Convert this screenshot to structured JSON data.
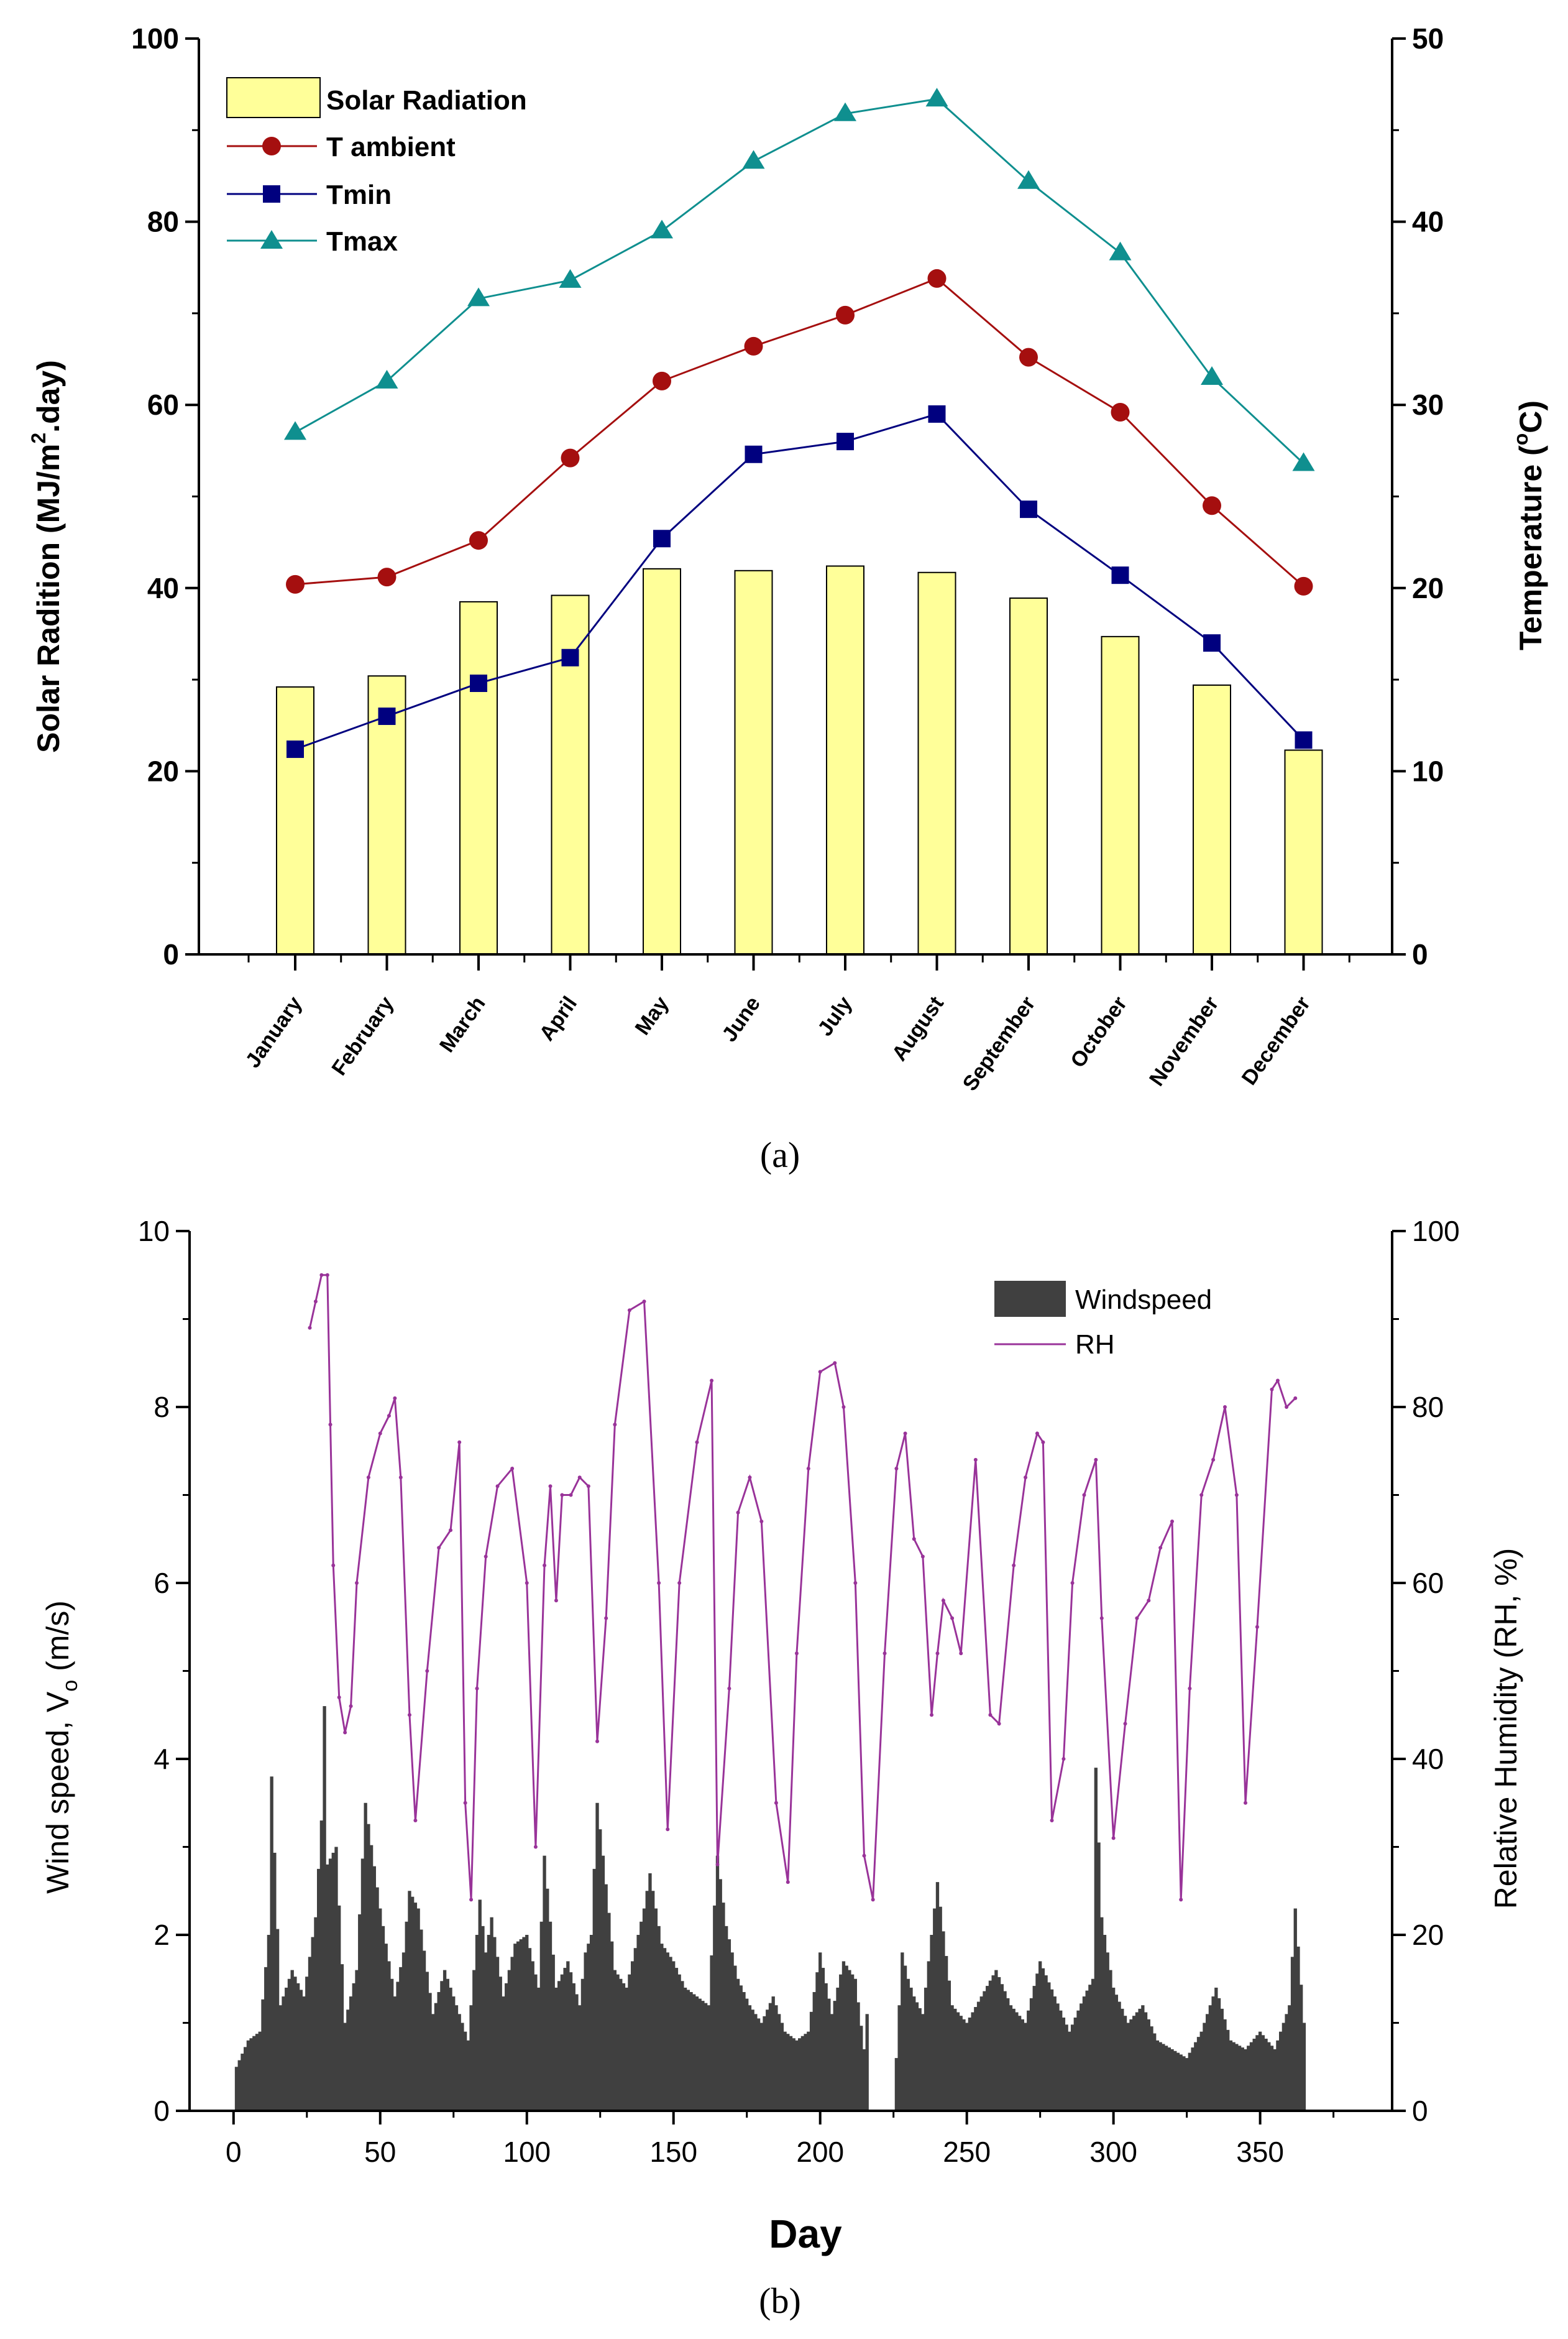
{
  "chart_data": [
    {
      "type": "bar",
      "panel_label": "(a)",
      "categories": [
        "January",
        "February",
        "March",
        "April",
        "May",
        "June",
        "July",
        "August",
        "September",
        "October",
        "November",
        "December"
      ],
      "ylabel_left": "Solar Radition (MJ/m",
      "ylabel_left_sup": "2",
      "ylabel_left_tail": ".day)",
      "ylabel_right": "Temperature (",
      "ylabel_right_sup": "o",
      "ylabel_right_tail": "C)",
      "ylim_left": [
        0,
        100
      ],
      "ylim_right": [
        0,
        50
      ],
      "yticks_left": [
        "0",
        "20",
        "40",
        "60",
        "80",
        "100"
      ],
      "yticks_right": [
        "0",
        "10",
        "20",
        "30",
        "40",
        "50"
      ],
      "legend_position": "top-left",
      "series": [
        {
          "name": "Solar Radiation",
          "type": "bar",
          "axis": "left",
          "color": "#ffff99",
          "values": [
            29.2,
            30.4,
            38.5,
            39.2,
            42.1,
            41.9,
            42.4,
            41.7,
            38.9,
            34.7,
            29.4,
            22.3
          ]
        },
        {
          "name": "T ambient",
          "type": "line",
          "marker": "circle",
          "axis": "right",
          "color": "#a50f0f",
          "values": [
            20.2,
            20.6,
            22.6,
            27.1,
            31.3,
            33.2,
            34.9,
            36.9,
            32.6,
            29.6,
            24.5,
            20.1
          ]
        },
        {
          "name": "Tmin",
          "type": "line",
          "marker": "square",
          "axis": "right",
          "color": "#00007f",
          "values": [
            11.2,
            13.0,
            14.8,
            16.2,
            22.7,
            27.3,
            28.0,
            29.5,
            24.3,
            20.7,
            17.0,
            11.7
          ]
        },
        {
          "name": "Tmax",
          "type": "line",
          "marker": "triangle",
          "axis": "right",
          "color": "#0f8f8f",
          "values": [
            28.5,
            31.3,
            35.8,
            36.8,
            39.5,
            43.3,
            45.9,
            46.7,
            42.2,
            38.3,
            31.5,
            26.8
          ]
        }
      ]
    },
    {
      "type": "bar",
      "panel_label": "(b)",
      "xlabel": "Day",
      "ylabel_left": "Wind speed, V",
      "ylabel_left_sub": "o",
      "ylabel_left_tail": " (m/s)",
      "ylabel_right": "Relative Humidity (RH, %)",
      "xlim": [
        -15,
        395
      ],
      "ylim_left": [
        0,
        10
      ],
      "ylim_right": [
        0,
        100
      ],
      "xticks": [
        "0",
        "50",
        "100",
        "150",
        "200",
        "250",
        "300",
        "350"
      ],
      "yticks_left": [
        "0",
        "2",
        "4",
        "6",
        "8",
        "10"
      ],
      "yticks_right": [
        "0",
        "20",
        "40",
        "60",
        "80",
        "100"
      ],
      "legend_position": "top-right",
      "series": [
        {
          "name": "Windspeed",
          "type": "bar",
          "axis": "left",
          "color": "#404040",
          "x": [
            1,
            5,
            9,
            12,
            13,
            16,
            20,
            24,
            28,
            30,
            31,
            32,
            35,
            38,
            42,
            45,
            50,
            55,
            58,
            60,
            63,
            68,
            72,
            76,
            80,
            84,
            86,
            88,
            92,
            96,
            100,
            104,
            106,
            110,
            114,
            118,
            120,
            122,
            124,
            126,
            130,
            134,
            138,
            140,
            142,
            146,
            150,
            154,
            158,
            162,
            165,
            168,
            172,
            176,
            180,
            184,
            188,
            192,
            196,
            200,
            204,
            208,
            212,
            215,
            216,
            225,
            226,
            228,
            230,
            232,
            235,
            240,
            245,
            250,
            255,
            260,
            265,
            270,
            275,
            280,
            285,
            290,
            293,
            294,
            296,
            300,
            305,
            310,
            315,
            320,
            325,
            330,
            335,
            340,
            345,
            350,
            355,
            360,
            362,
            365
          ],
          "values": [
            0.5,
            0.8,
            0.9,
            2.0,
            3.8,
            1.2,
            1.6,
            1.3,
            2.2,
            3.3,
            4.6,
            2.8,
            3.0,
            1.0,
            1.6,
            3.5,
            2.3,
            1.3,
            1.8,
            2.5,
            2.3,
            1.1,
            1.6,
            1.2,
            0.8,
            2.4,
            1.8,
            2.2,
            1.3,
            1.9,
            2.0,
            1.4,
            2.9,
            1.4,
            1.7,
            1.2,
            1.8,
            2.0,
            3.5,
            2.9,
            1.6,
            1.4,
            2.0,
            2.3,
            2.7,
            1.9,
            1.7,
            1.4,
            1.3,
            1.2,
            2.9,
            2.1,
            1.5,
            1.2,
            1.0,
            1.3,
            0.9,
            0.8,
            0.9,
            1.8,
            1.1,
            1.7,
            1.5,
            0.7,
            1.1,
            0,
            0.6,
            1.8,
            1.5,
            1.3,
            1.1,
            2.6,
            1.2,
            1.0,
            1.3,
            1.6,
            1.2,
            1.0,
            1.7,
            1.3,
            0.9,
            1.3,
            1.5,
            3.9,
            2.2,
            1.4,
            1.0,
            1.2,
            0.8,
            0.7,
            0.6,
            0.9,
            1.4,
            0.8,
            0.7,
            0.9,
            0.7,
            1.2,
            2.3,
            1.0
          ]
        },
        {
          "name": "RH",
          "type": "line",
          "axis": "right",
          "color": "#993399",
          "x": [
            26,
            28,
            30,
            32,
            33,
            34,
            36,
            38,
            40,
            42,
            46,
            50,
            53,
            55,
            57,
            60,
            62,
            66,
            70,
            74,
            77,
            79,
            81,
            83,
            86,
            90,
            95,
            100,
            103,
            106,
            108,
            110,
            112,
            115,
            118,
            121,
            124,
            127,
            130,
            135,
            140,
            145,
            148,
            152,
            158,
            163,
            165,
            169,
            172,
            176,
            180,
            185,
            189,
            192,
            196,
            200,
            205,
            208,
            212,
            215,
            218,
            222,
            226,
            229,
            232,
            235,
            238,
            240,
            242,
            245,
            248,
            253,
            258,
            261,
            266,
            270,
            274,
            276,
            279,
            283,
            286,
            290,
            294,
            296,
            300,
            304,
            308,
            312,
            316,
            320,
            323,
            326,
            330,
            334,
            338,
            342,
            345,
            349,
            354,
            356,
            359,
            362
          ],
          "values": [
            89,
            92,
            95,
            95,
            78,
            62,
            47,
            43,
            46,
            60,
            72,
            77,
            79,
            81,
            72,
            45,
            33,
            50,
            64,
            66,
            76,
            35,
            24,
            48,
            63,
            71,
            73,
            60,
            30,
            62,
            71,
            58,
            70,
            70,
            72,
            71,
            42,
            56,
            78,
            91,
            92,
            60,
            32,
            60,
            76,
            83,
            28,
            48,
            68,
            72,
            67,
            35,
            26,
            52,
            73,
            84,
            85,
            80,
            60,
            29,
            24,
            52,
            73,
            77,
            65,
            63,
            45,
            52,
            58,
            56,
            52,
            74,
            45,
            44,
            62,
            72,
            77,
            76,
            33,
            40,
            60,
            70,
            74,
            56,
            31,
            44,
            56,
            58,
            64,
            67,
            24,
            48,
            70,
            74,
            80,
            70,
            35,
            55,
            82,
            83,
            80,
            81
          ]
        }
      ]
    }
  ]
}
